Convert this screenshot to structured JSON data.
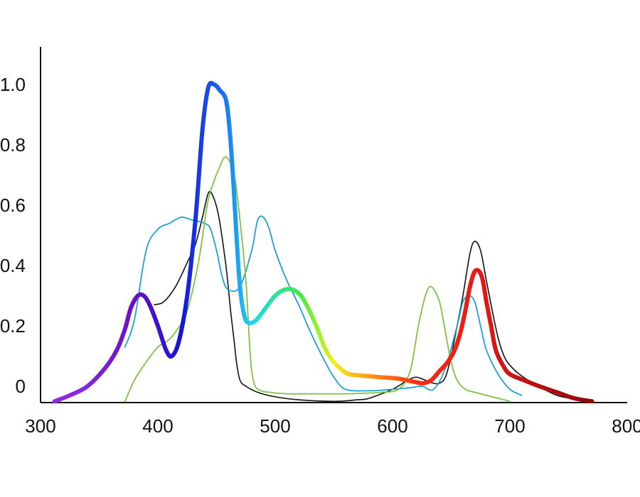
{
  "chart_data": {
    "type": "line",
    "title": "",
    "xlabel": "",
    "ylabel": "",
    "xlim": [
      300,
      800
    ],
    "ylim": [
      -0.05,
      1.06
    ],
    "x_ticks": [
      300,
      400,
      500,
      600,
      700,
      800
    ],
    "y_ticks": [
      0,
      0.2,
      0.4,
      0.6,
      0.8,
      1.0
    ],
    "x_tick_labels": [
      "300",
      "400",
      "500",
      "600",
      "700",
      "800"
    ],
    "y_tick_labels": [
      "0",
      "0.2",
      "0.4",
      "0.6",
      "0.8",
      "1.0"
    ],
    "grid": false,
    "legend": "none",
    "series": [
      {
        "style": "spectrum",
        "line_width": 6,
        "colors": {
          "330": "#8a2be2",
          "380": "#6a0fc0",
          "420": "#1414d8",
          "455": "#1a6cf0",
          "480": "#20d6f0",
          "520": "#3ee84a",
          "550": "#f0f020",
          "580": "#ff9a12",
          "620": "#ff2a14",
          "680": "#e01616",
          "770": "#8a0a0a"
        },
        "x": [
          312,
          325,
          340,
          355,
          365,
          372,
          377,
          383,
          388,
          393,
          400,
          407,
          412,
          418,
          425,
          432,
          438,
          443,
          448,
          453,
          458,
          461,
          464,
          467,
          470,
          474,
          478,
          484,
          492,
          500,
          508,
          515,
          522,
          528,
          535,
          542,
          548,
          555,
          563,
          575,
          590,
          605,
          618,
          626,
          633,
          640,
          647,
          653,
          658,
          662,
          666,
          670,
          674,
          677,
          680,
          684,
          688,
          694,
          700,
          712,
          725,
          740,
          755,
          770
        ],
        "y": [
          -0.05,
          -0.03,
          0.0,
          0.06,
          0.12,
          0.19,
          0.26,
          0.3,
          0.3,
          0.27,
          0.2,
          0.12,
          0.1,
          0.15,
          0.3,
          0.55,
          0.85,
          0.99,
          1.0,
          0.98,
          0.95,
          0.86,
          0.7,
          0.5,
          0.33,
          0.23,
          0.21,
          0.22,
          0.26,
          0.3,
          0.32,
          0.32,
          0.3,
          0.26,
          0.2,
          0.13,
          0.09,
          0.06,
          0.04,
          0.035,
          0.03,
          0.025,
          0.015,
          0.01,
          0.02,
          0.05,
          0.08,
          0.12,
          0.18,
          0.25,
          0.33,
          0.38,
          0.38,
          0.35,
          0.28,
          0.2,
          0.12,
          0.07,
          0.04,
          0.02,
          0.0,
          -0.02,
          -0.04,
          -0.05
        ]
      },
      {
        "color": "#111111",
        "line_width": 1.6,
        "x": [
          397,
          405,
          415,
          425,
          432,
          438,
          443,
          447,
          452,
          458,
          462,
          465,
          467,
          470,
          475,
          485,
          500,
          520,
          550,
          570,
          580,
          600,
          613,
          620,
          628,
          635,
          640,
          645,
          650,
          655,
          660,
          666,
          670,
          675,
          680,
          685,
          690,
          695,
          700,
          708,
          720,
          740,
          760,
          770
        ],
        "y": [
          0.27,
          0.28,
          0.33,
          0.41,
          0.47,
          0.56,
          0.64,
          0.63,
          0.56,
          0.4,
          0.25,
          0.15,
          0.08,
          0.02,
          0.0,
          -0.02,
          -0.035,
          -0.045,
          -0.05,
          -0.045,
          -0.04,
          -0.01,
          0.02,
          0.03,
          0.02,
          0.01,
          0.01,
          0.03,
          0.1,
          0.2,
          0.3,
          0.44,
          0.48,
          0.45,
          0.35,
          0.25,
          0.16,
          0.1,
          0.07,
          0.04,
          0.01,
          -0.03,
          -0.045,
          -0.05
        ]
      },
      {
        "color": "#1e9fd6",
        "line_width": 1.8,
        "x": [
          372,
          380,
          390,
          400,
          410,
          420,
          430,
          440,
          445,
          450,
          455,
          460,
          470,
          480,
          485,
          490,
          495,
          500,
          510,
          520,
          530,
          540,
          550,
          560,
          580,
          600,
          615,
          625,
          635,
          645,
          655,
          660,
          665,
          670,
          675,
          680,
          690,
          700,
          710
        ],
        "y": [
          0.13,
          0.22,
          0.45,
          0.52,
          0.54,
          0.56,
          0.55,
          0.54,
          0.52,
          0.45,
          0.36,
          0.32,
          0.33,
          0.45,
          0.55,
          0.56,
          0.52,
          0.45,
          0.35,
          0.27,
          0.18,
          0.1,
          0.03,
          -0.01,
          -0.015,
          -0.01,
          -0.005,
          0.0,
          -0.01,
          0.06,
          0.2,
          0.28,
          0.3,
          0.28,
          0.2,
          0.12,
          0.04,
          -0.01,
          -0.03
        ]
      },
      {
        "color": "#7dc242",
        "line_width": 1.8,
        "x": [
          372,
          380,
          390,
          400,
          408,
          415,
          425,
          435,
          442,
          447,
          452,
          458,
          465,
          470,
          475,
          478,
          480,
          483,
          488,
          495,
          510,
          530,
          560,
          590,
          605,
          615,
          622,
          628,
          633,
          640,
          645,
          650,
          655,
          662,
          670,
          680,
          690,
          700
        ],
        "y": [
          -0.05,
          0.02,
          0.08,
          0.13,
          0.15,
          0.18,
          0.25,
          0.42,
          0.6,
          0.67,
          0.72,
          0.76,
          0.7,
          0.55,
          0.35,
          0.15,
          0.05,
          0.0,
          -0.015,
          -0.02,
          -0.025,
          -0.025,
          -0.025,
          -0.02,
          -0.01,
          0.05,
          0.2,
          0.3,
          0.33,
          0.28,
          0.18,
          0.08,
          0.02,
          -0.01,
          -0.02,
          -0.03,
          -0.04,
          -0.05
        ]
      }
    ]
  }
}
